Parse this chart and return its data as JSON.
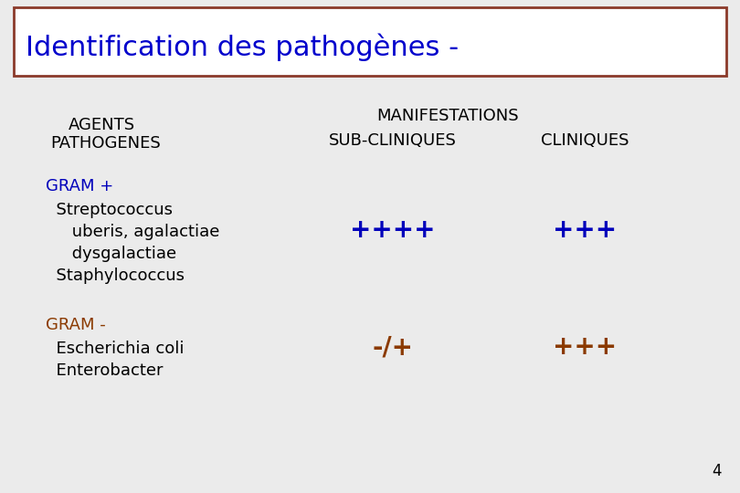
{
  "title": "Identification des pathogènes -",
  "title_color": "#0000CC",
  "title_fontsize": 22,
  "title_box_edge_color": "#8B3A2A",
  "background_color": "#EBEBEB",
  "header_agents_line1": "AGENTS",
  "header_agents_line2": "PATHOGENES",
  "header_manifestations": "MANIFESTATIONS",
  "header_sub": "SUB-CLINIQUES",
  "header_cliniques": "CLINIQUES",
  "gram_plus_label": "GRAM +",
  "gram_plus_color": "#0000BB",
  "gram_minus_label": "GRAM -",
  "gram_minus_color": "#8B3A00",
  "gram_plus_items": [
    "  Streptococcus",
    "     uberis, agalactiae",
    "     dysgalactiae",
    "  Staphylococcus"
  ],
  "gram_minus_items": [
    "  Escherichia coli",
    "  Enterobacter"
  ],
  "gram_plus_sub": "++++",
  "gram_plus_sub_color": "#0000BB",
  "gram_plus_clin": "+++",
  "gram_plus_clin_color": "#0000BB",
  "gram_minus_sub": "-/+",
  "gram_minus_sub_color": "#8B3A00",
  "gram_minus_clin": "+++",
  "gram_minus_clin_color": "#8B3A00",
  "page_number": "4",
  "header_fontsize": 13,
  "body_fontsize": 13,
  "score_fontsize": 20,
  "gram_label_fontsize": 13
}
